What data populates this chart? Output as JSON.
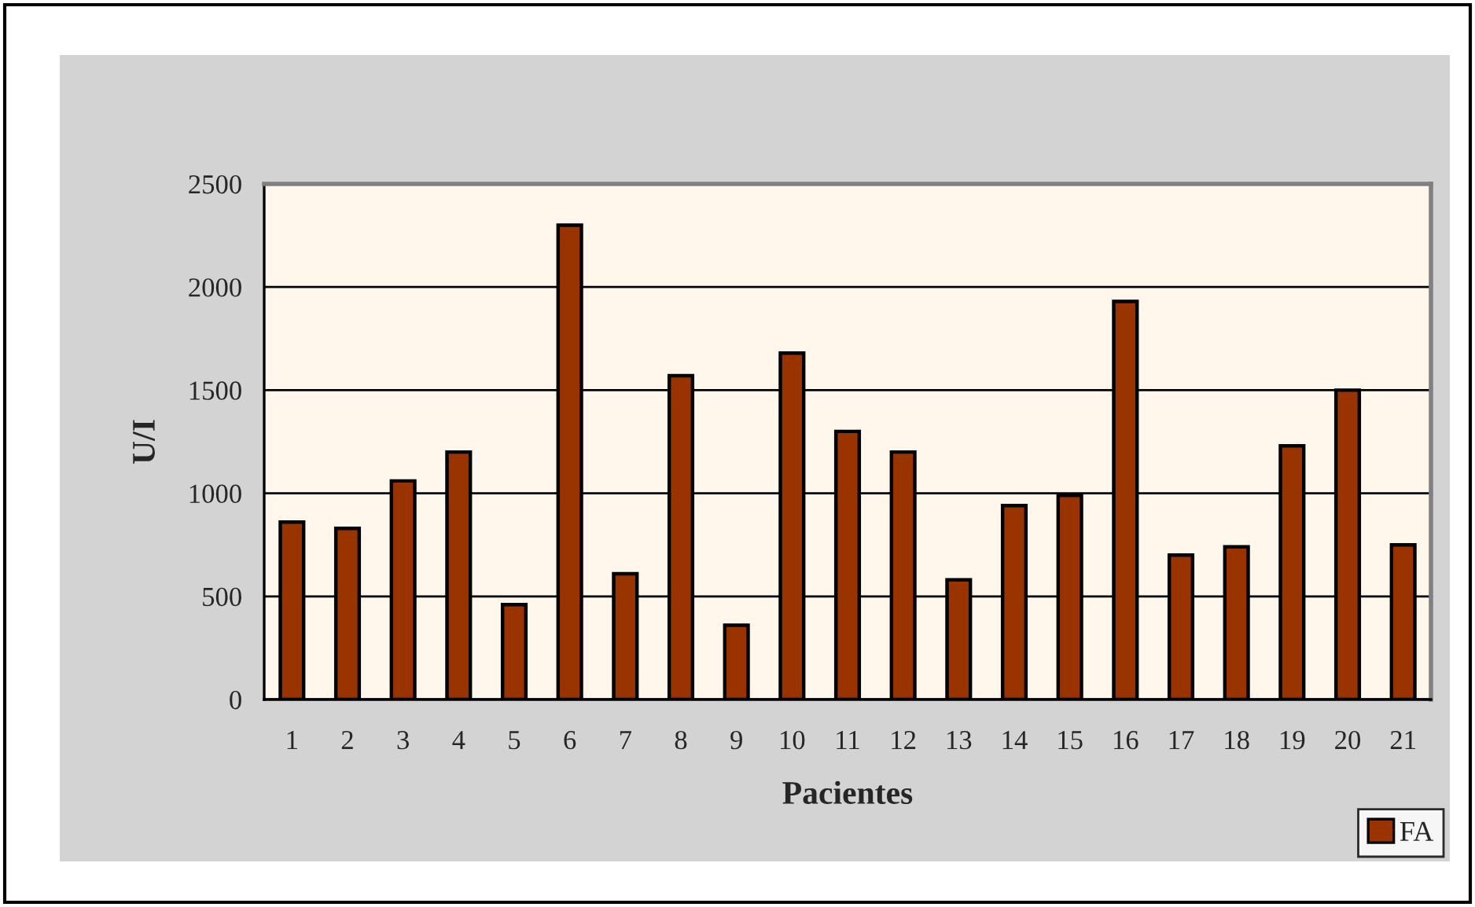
{
  "chart_data": {
    "type": "bar",
    "xlabel": "Pacientes",
    "ylabel": "U/I",
    "categories": [
      "1",
      "2",
      "3",
      "4",
      "5",
      "6",
      "7",
      "8",
      "9",
      "10",
      "11",
      "12",
      "13",
      "14",
      "15",
      "16",
      "17",
      "18",
      "19",
      "20",
      "21"
    ],
    "series": [
      {
        "name": "FA",
        "color": "#993300",
        "values": [
          860,
          830,
          1060,
          1200,
          460,
          2300,
          610,
          1570,
          360,
          1680,
          1300,
          1200,
          580,
          940,
          990,
          1930,
          700,
          740,
          1230,
          1500,
          750
        ]
      }
    ],
    "ylim": [
      0,
      2500
    ],
    "yticks": [
      0,
      500,
      1000,
      1500,
      2000,
      2500
    ],
    "grid": "y",
    "legend": "bottom right"
  }
}
